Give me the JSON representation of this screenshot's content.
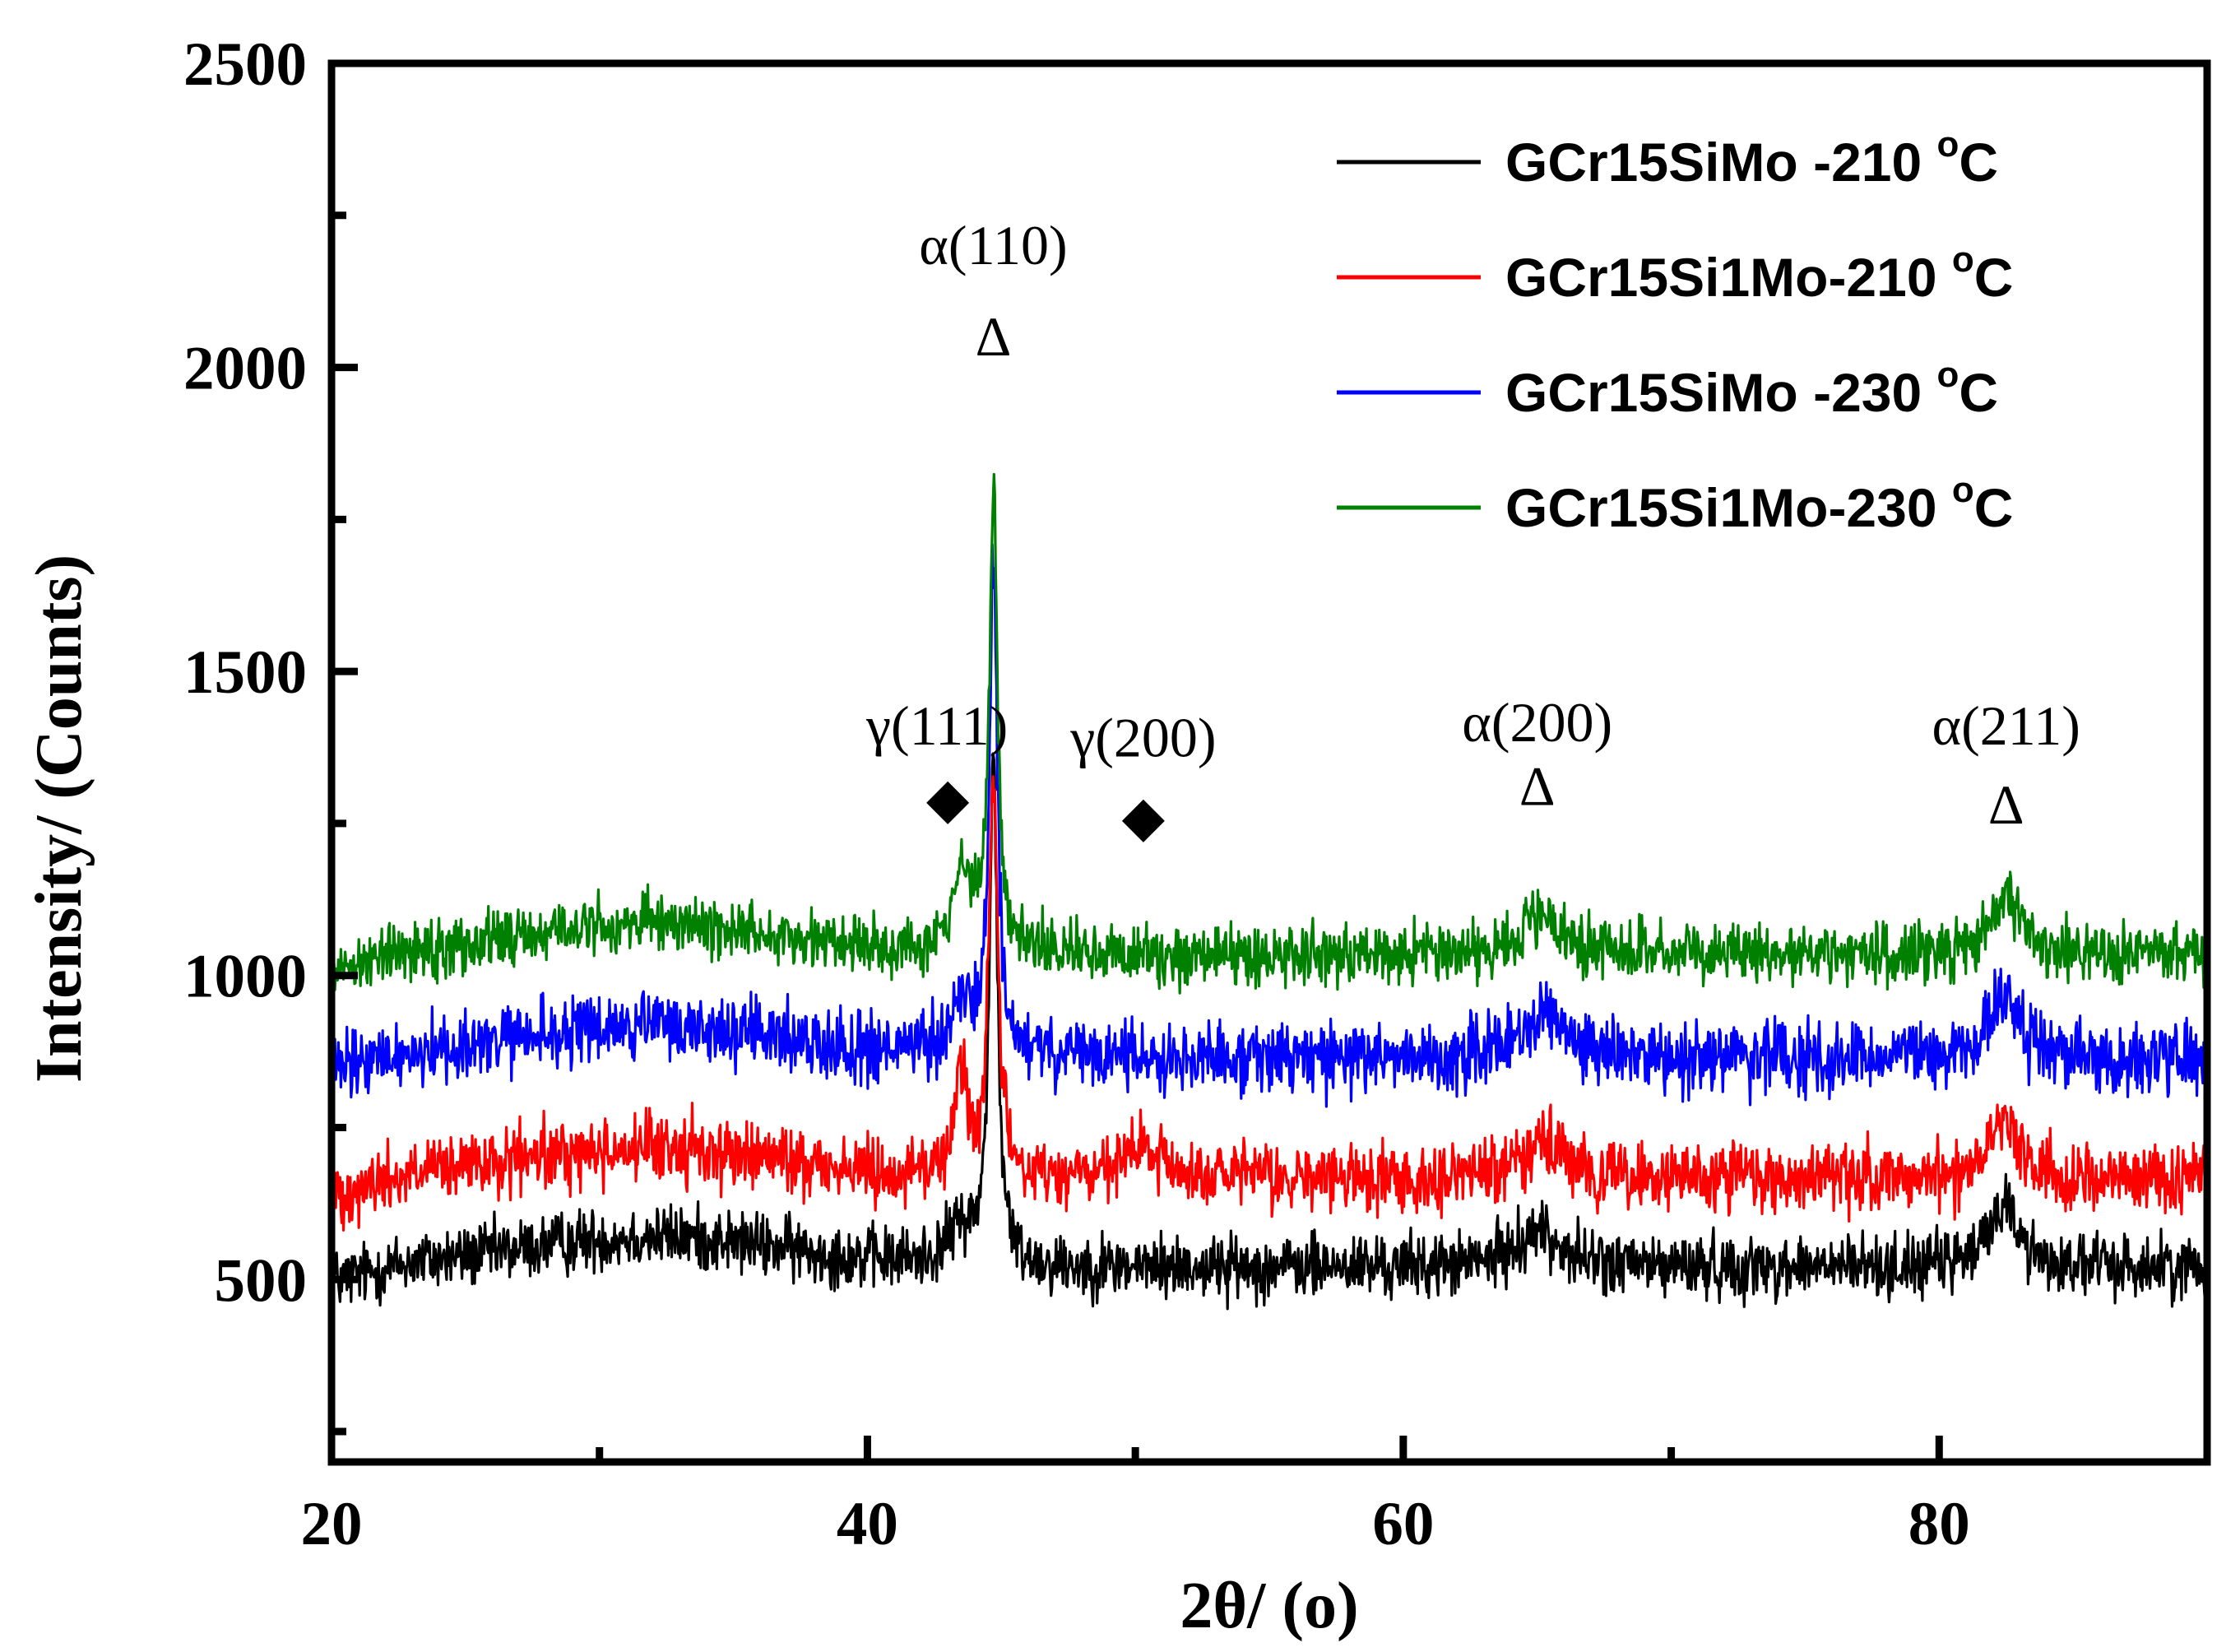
{
  "chart_data": {
    "type": "line",
    "title": "",
    "xlabel": "2θ/ (o)",
    "ylabel": "Intensity/ (Counts)",
    "xlim": [
      20,
      90
    ],
    "ylim": [
      200,
      2500
    ],
    "xticks": [
      20,
      40,
      60,
      80
    ],
    "xtick_labels": [
      "20",
      "40",
      "60",
      "80"
    ],
    "xminor": [
      30,
      50,
      70
    ],
    "yticks": [
      500,
      1000,
      1500,
      2000,
      2500
    ],
    "ytick_labels": [
      "500",
      "1000",
      "1500",
      "2000",
      "2500"
    ],
    "yminor": [
      250,
      750,
      1250,
      1750,
      2250
    ],
    "grid": false,
    "legend_position": "top-right",
    "series": [
      {
        "name": "GCr15SiMo -210 °C",
        "legend_main": "GCr15SiMo -210 ",
        "legend_sup": "o",
        "legend_unit": "C",
        "color": "#000000",
        "baseline": 520,
        "noise": 45,
        "peaks": [
          [
            44.7,
            830,
            0.18
          ],
          [
            43.5,
            60,
            0.6
          ],
          [
            65.0,
            60,
            1.0
          ],
          [
            82.4,
            110,
            0.6
          ]
        ],
        "hump": [
          32,
          50,
          7
        ]
      },
      {
        "name": "GCr15Si1Mo-210 °C",
        "legend_main": "GCr15Si1Mo-210 ",
        "legend_sup": "o",
        "legend_unit": "C",
        "color": "#ff0000",
        "baseline": 665,
        "noise": 48,
        "peaks": [
          [
            44.7,
            640,
            0.2
          ],
          [
            43.5,
            170,
            0.3
          ],
          [
            50.3,
            50,
            0.8
          ],
          [
            65.0,
            60,
            1.0
          ],
          [
            82.4,
            110,
            0.6
          ]
        ],
        "hump": [
          32,
          50,
          7
        ]
      },
      {
        "name": "GCr15SiMo -230 °C",
        "legend_main": "GCr15SiMo -230 ",
        "legend_sup": "o",
        "legend_unit": "C",
        "color": "#0000ff",
        "baseline": 865,
        "noise": 50,
        "peaks": [
          [
            44.7,
            800,
            0.18
          ],
          [
            43.5,
            80,
            0.5
          ],
          [
            65.2,
            70,
            0.9
          ],
          [
            82.5,
            110,
            0.6
          ]
        ],
        "hump": [
          32,
          50,
          7
        ]
      },
      {
        "name": "GCr15Si1Mo-230 °C",
        "legend_main": "GCr15Si1Mo-230 ",
        "legend_sup": "o",
        "legend_unit": "C",
        "color": "#008000",
        "baseline": 1035,
        "noise": 42,
        "peaks": [
          [
            44.7,
            760,
            0.18
          ],
          [
            43.5,
            130,
            0.4
          ],
          [
            65.0,
            60,
            0.9
          ],
          [
            82.5,
            100,
            0.6
          ]
        ],
        "hump": [
          32,
          50,
          7
        ]
      }
    ],
    "annotations": [
      {
        "name": "alpha-110",
        "label": "α(110)",
        "marker": "Δ",
        "x": 44.7,
        "y_label": 2170,
        "y_marker": 2020
      },
      {
        "name": "gamma-111",
        "label": "γ(111)",
        "marker": "◆",
        "x": 43.0,
        "label_x": 42.6,
        "y_label": 1380,
        "y_marker": 1260
      },
      {
        "name": "gamma-200",
        "label": "γ(200)",
        "marker": "◆",
        "x": 50.3,
        "label_x": 50.3,
        "y_label": 1360,
        "y_marker": 1230
      },
      {
        "name": "alpha-200",
        "label": "α(200)",
        "marker": "Δ",
        "x": 65.0,
        "y_label": 1385,
        "y_marker": 1280
      },
      {
        "name": "alpha-211",
        "label": "α(211)",
        "marker": "Δ",
        "x": 82.5,
        "y_label": 1380,
        "y_marker": 1250
      }
    ]
  }
}
